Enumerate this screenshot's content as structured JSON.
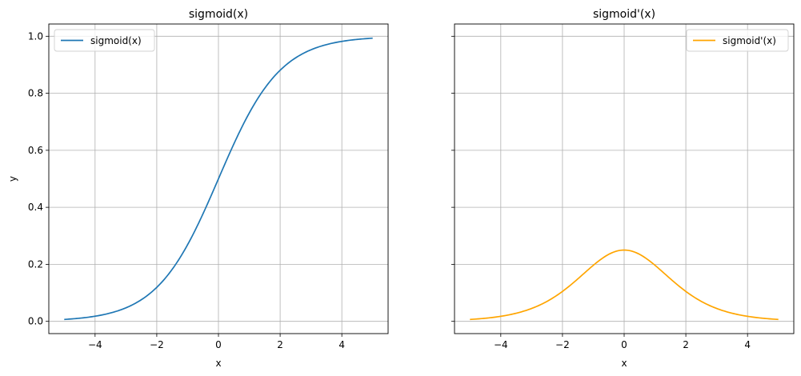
{
  "chart_data": [
    {
      "type": "line",
      "title": "sigmoid(x)",
      "xlabel": "x",
      "ylabel": "y",
      "xlim": [
        -5.5,
        5.5
      ],
      "ylim": [
        -0.043,
        1.043
      ],
      "xticks": [
        -4,
        -2,
        0,
        2,
        4
      ],
      "xtick_labels": [
        "−4",
        "−2",
        "0",
        "2",
        "4"
      ],
      "yticks": [
        0,
        0.2,
        0.4,
        0.6,
        0.8,
        1.0
      ],
      "ytick_labels": [
        "0.0",
        "0.2",
        "0.4",
        "0.6",
        "0.8",
        "1.0"
      ],
      "grid": true,
      "legend": "upper-left",
      "series": [
        {
          "name": "sigmoid(x)",
          "function": "sigmoid",
          "x_range": [
            -5,
            5
          ],
          "color": "#1f77b4"
        }
      ]
    },
    {
      "type": "line",
      "title": "sigmoid'(x)",
      "xlabel": "x",
      "ylabel": "",
      "xlim": [
        -5.5,
        5.5
      ],
      "ylim": [
        -0.043,
        1.043
      ],
      "xticks": [
        -4,
        -2,
        0,
        2,
        4
      ],
      "xtick_labels": [
        "−4",
        "−2",
        "0",
        "2",
        "4"
      ],
      "yticks": [
        0,
        0.2,
        0.4,
        0.6,
        0.8,
        1.0
      ],
      "ytick_labels": [],
      "grid": true,
      "legend": "upper-right",
      "series": [
        {
          "name": "sigmoid'(x)",
          "function": "sigmoid_derivative",
          "x_range": [
            -5,
            5
          ],
          "color": "#ffa500"
        }
      ]
    }
  ]
}
